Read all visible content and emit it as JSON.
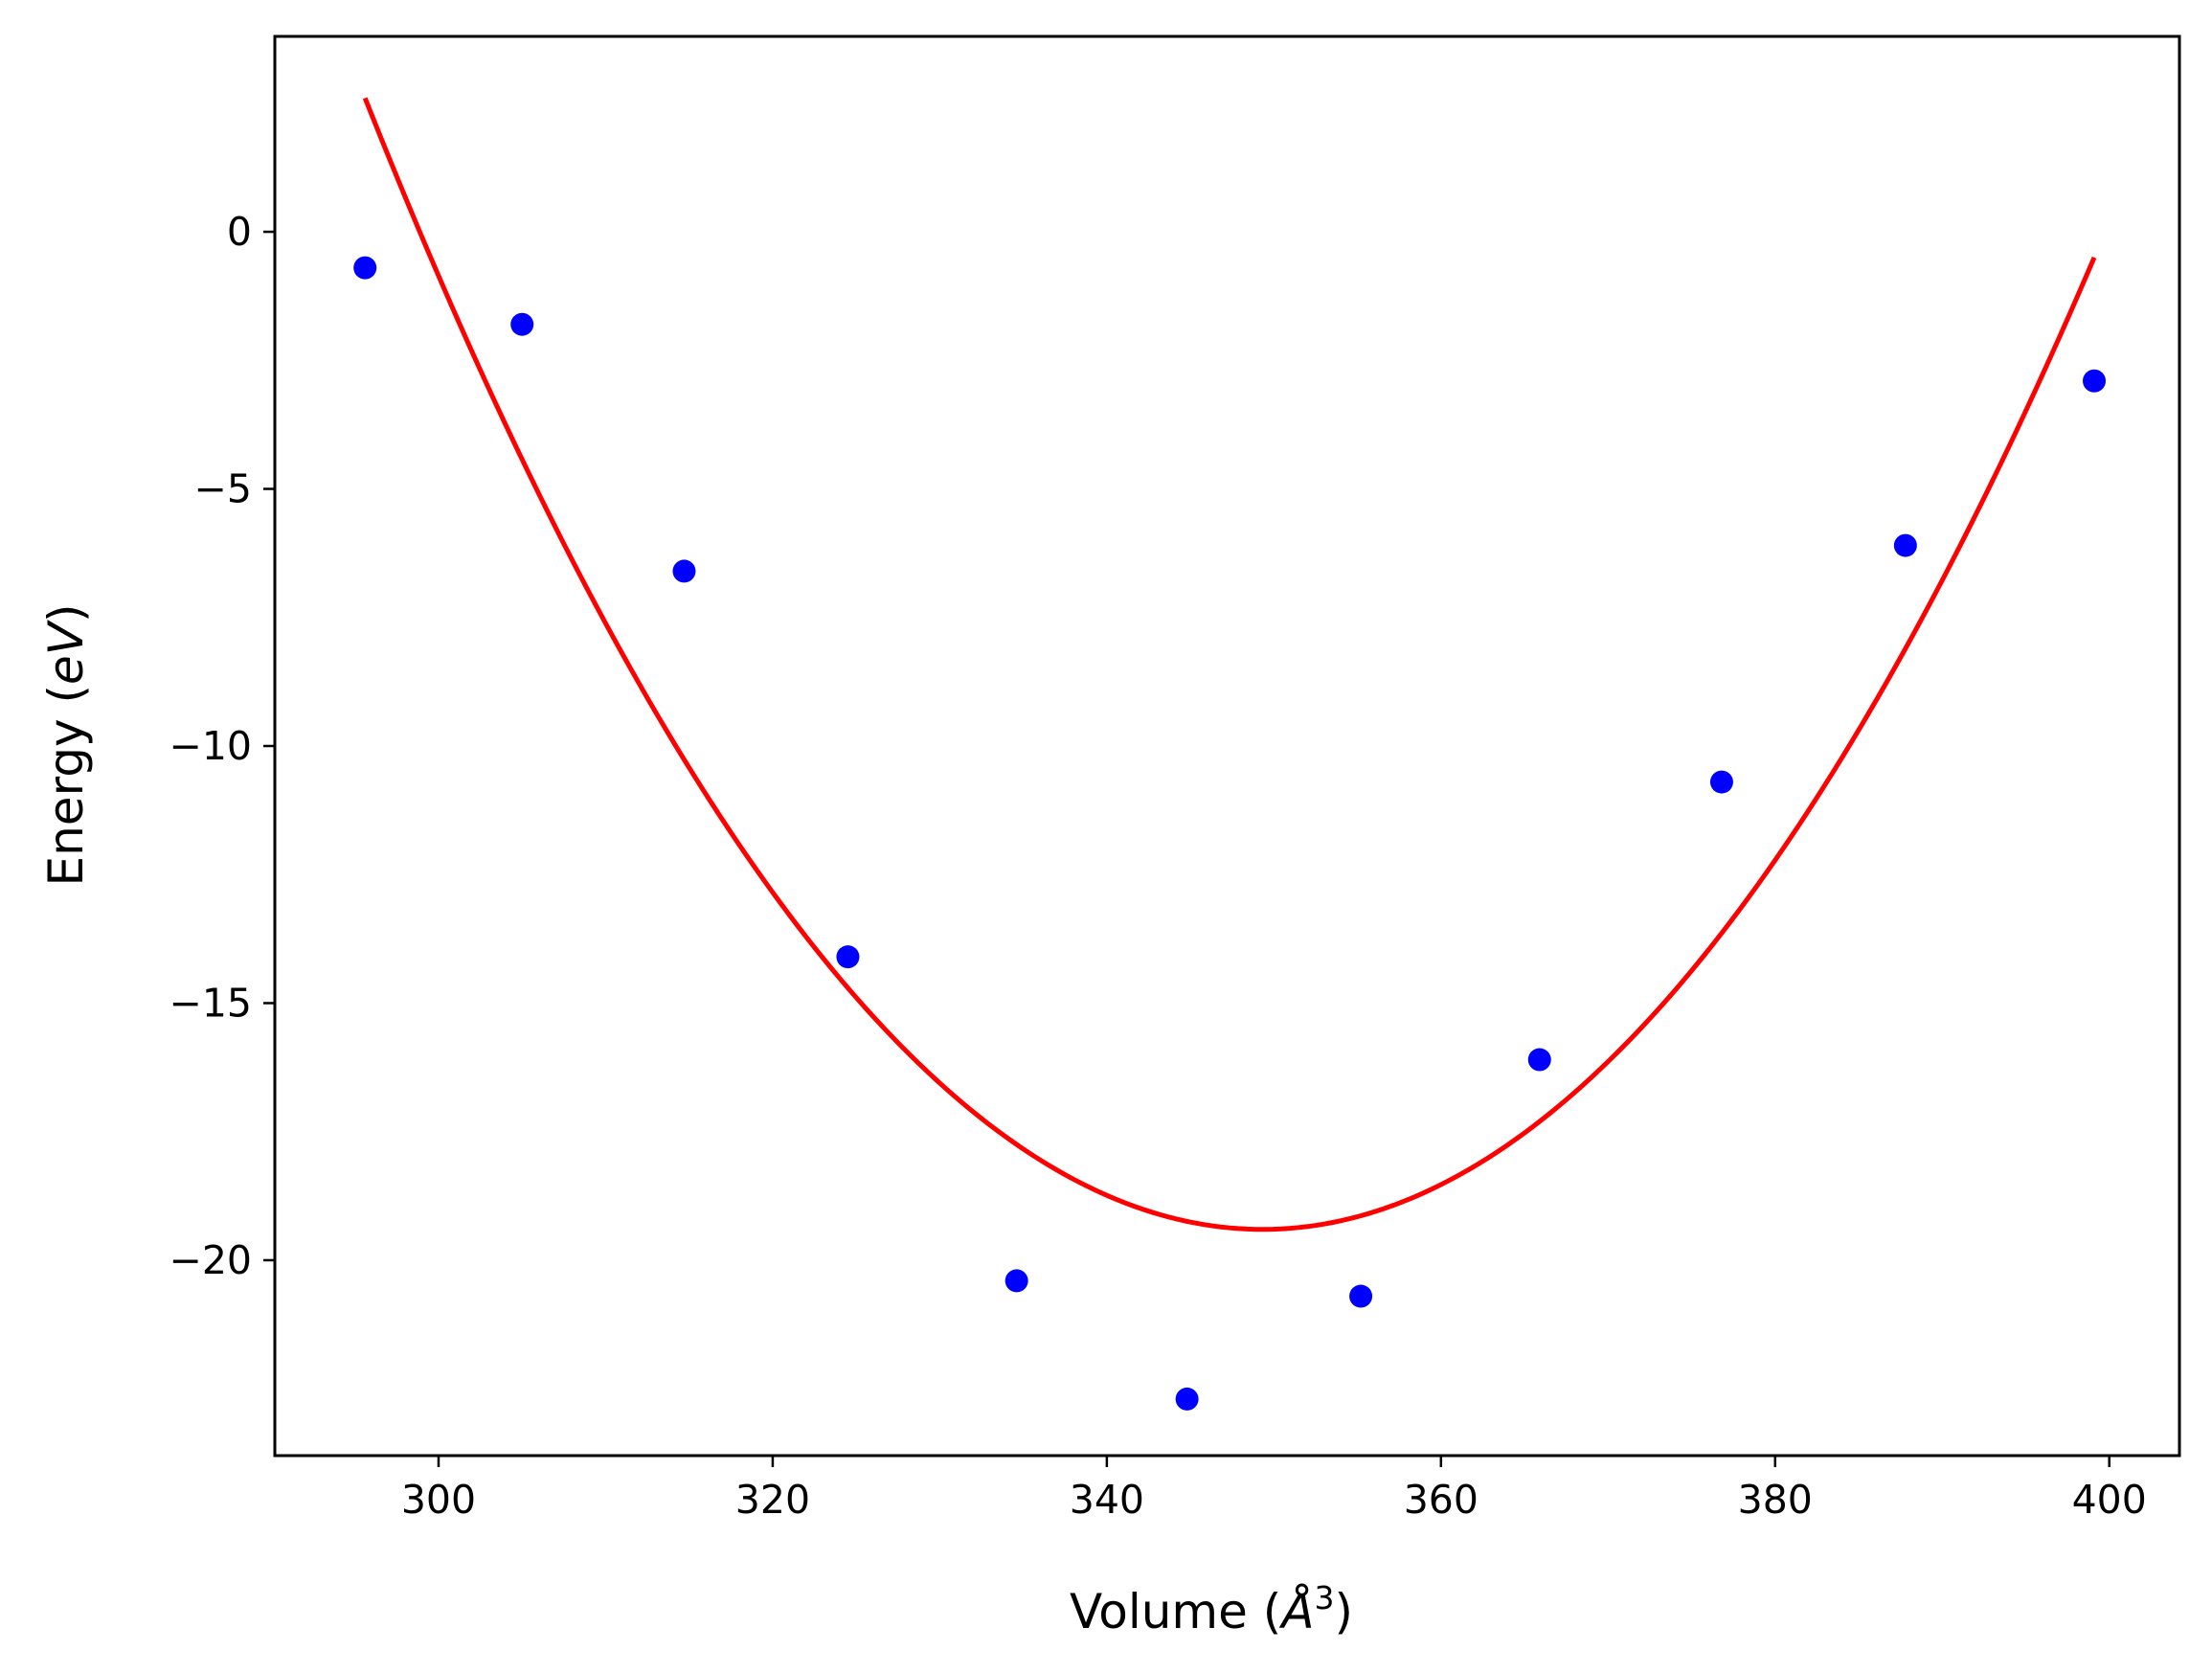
{
  "chart_data": {
    "type": "scatter",
    "xlabel": "Volume (Å³)",
    "xlabel_parts": {
      "prefix": "Volume (",
      "symbol": "Å",
      "exponent": "3",
      "suffix": ")"
    },
    "ylabel": "Energy (eV)",
    "ylabel_parts": {
      "prefix": "Energy (",
      "symbol": "eV",
      "suffix": ")"
    },
    "xlim": [
      290.2,
      404.2
    ],
    "ylim": [
      -23.8,
      3.8
    ],
    "xticks": [
      300,
      320,
      340,
      360,
      380,
      400
    ],
    "yticks": [
      0,
      -5,
      -10,
      -15,
      -20
    ],
    "xtick_labels": [
      "300",
      "320",
      "340",
      "360",
      "380",
      "400"
    ],
    "ytick_labels": [
      "0",
      "−5",
      "−10",
      "−15",
      "−20"
    ],
    "grid": false,
    "series": [
      {
        "kind": "scatter",
        "color": "#0000ff",
        "x": [
          295.6,
          305.0,
          314.7,
          324.5,
          334.6,
          344.8,
          355.2,
          365.9,
          376.8,
          387.8,
          399.1
        ],
        "y": [
          -0.7,
          -1.8,
          -6.6,
          -14.1,
          -20.4,
          -22.7,
          -20.7,
          -16.1,
          -10.7,
          -6.1,
          -2.9
        ]
      },
      {
        "kind": "line",
        "color": "#ff0000",
        "x": [
          295.6,
          349.1,
          399.1
        ],
        "y": [
          2.6,
          -19.4,
          -0.5
        ],
        "fit_vertex": [
          349.1,
          -19.4
        ]
      }
    ]
  }
}
